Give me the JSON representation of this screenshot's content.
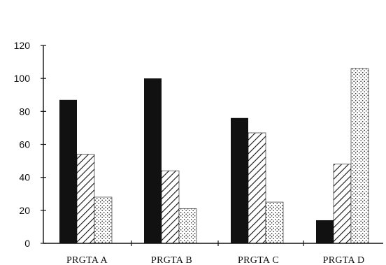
{
  "chart_data": {
    "type": "bar",
    "categories": [
      "PRGTA A",
      "PRGTA B",
      "PRGTA C",
      "PRGTA D"
    ],
    "series": [
      {
        "values": [
          87,
          100,
          76,
          14
        ],
        "pattern": "solid-black"
      },
      {
        "values": [
          54,
          44,
          67,
          48
        ],
        "pattern": "diagonal-hatch"
      },
      {
        "values": [
          28,
          21,
          25,
          106
        ],
        "pattern": "dotted"
      }
    ],
    "y_ticks": [
      "0",
      "20",
      "40",
      "60",
      "80",
      "100",
      "120"
    ],
    "ylim": [
      0,
      120
    ],
    "grid": false,
    "legend": "none",
    "colors": {
      "axis": "#111111",
      "solid": "#111111",
      "pattern_ink": "#111111",
      "background": "#ffffff"
    }
  }
}
